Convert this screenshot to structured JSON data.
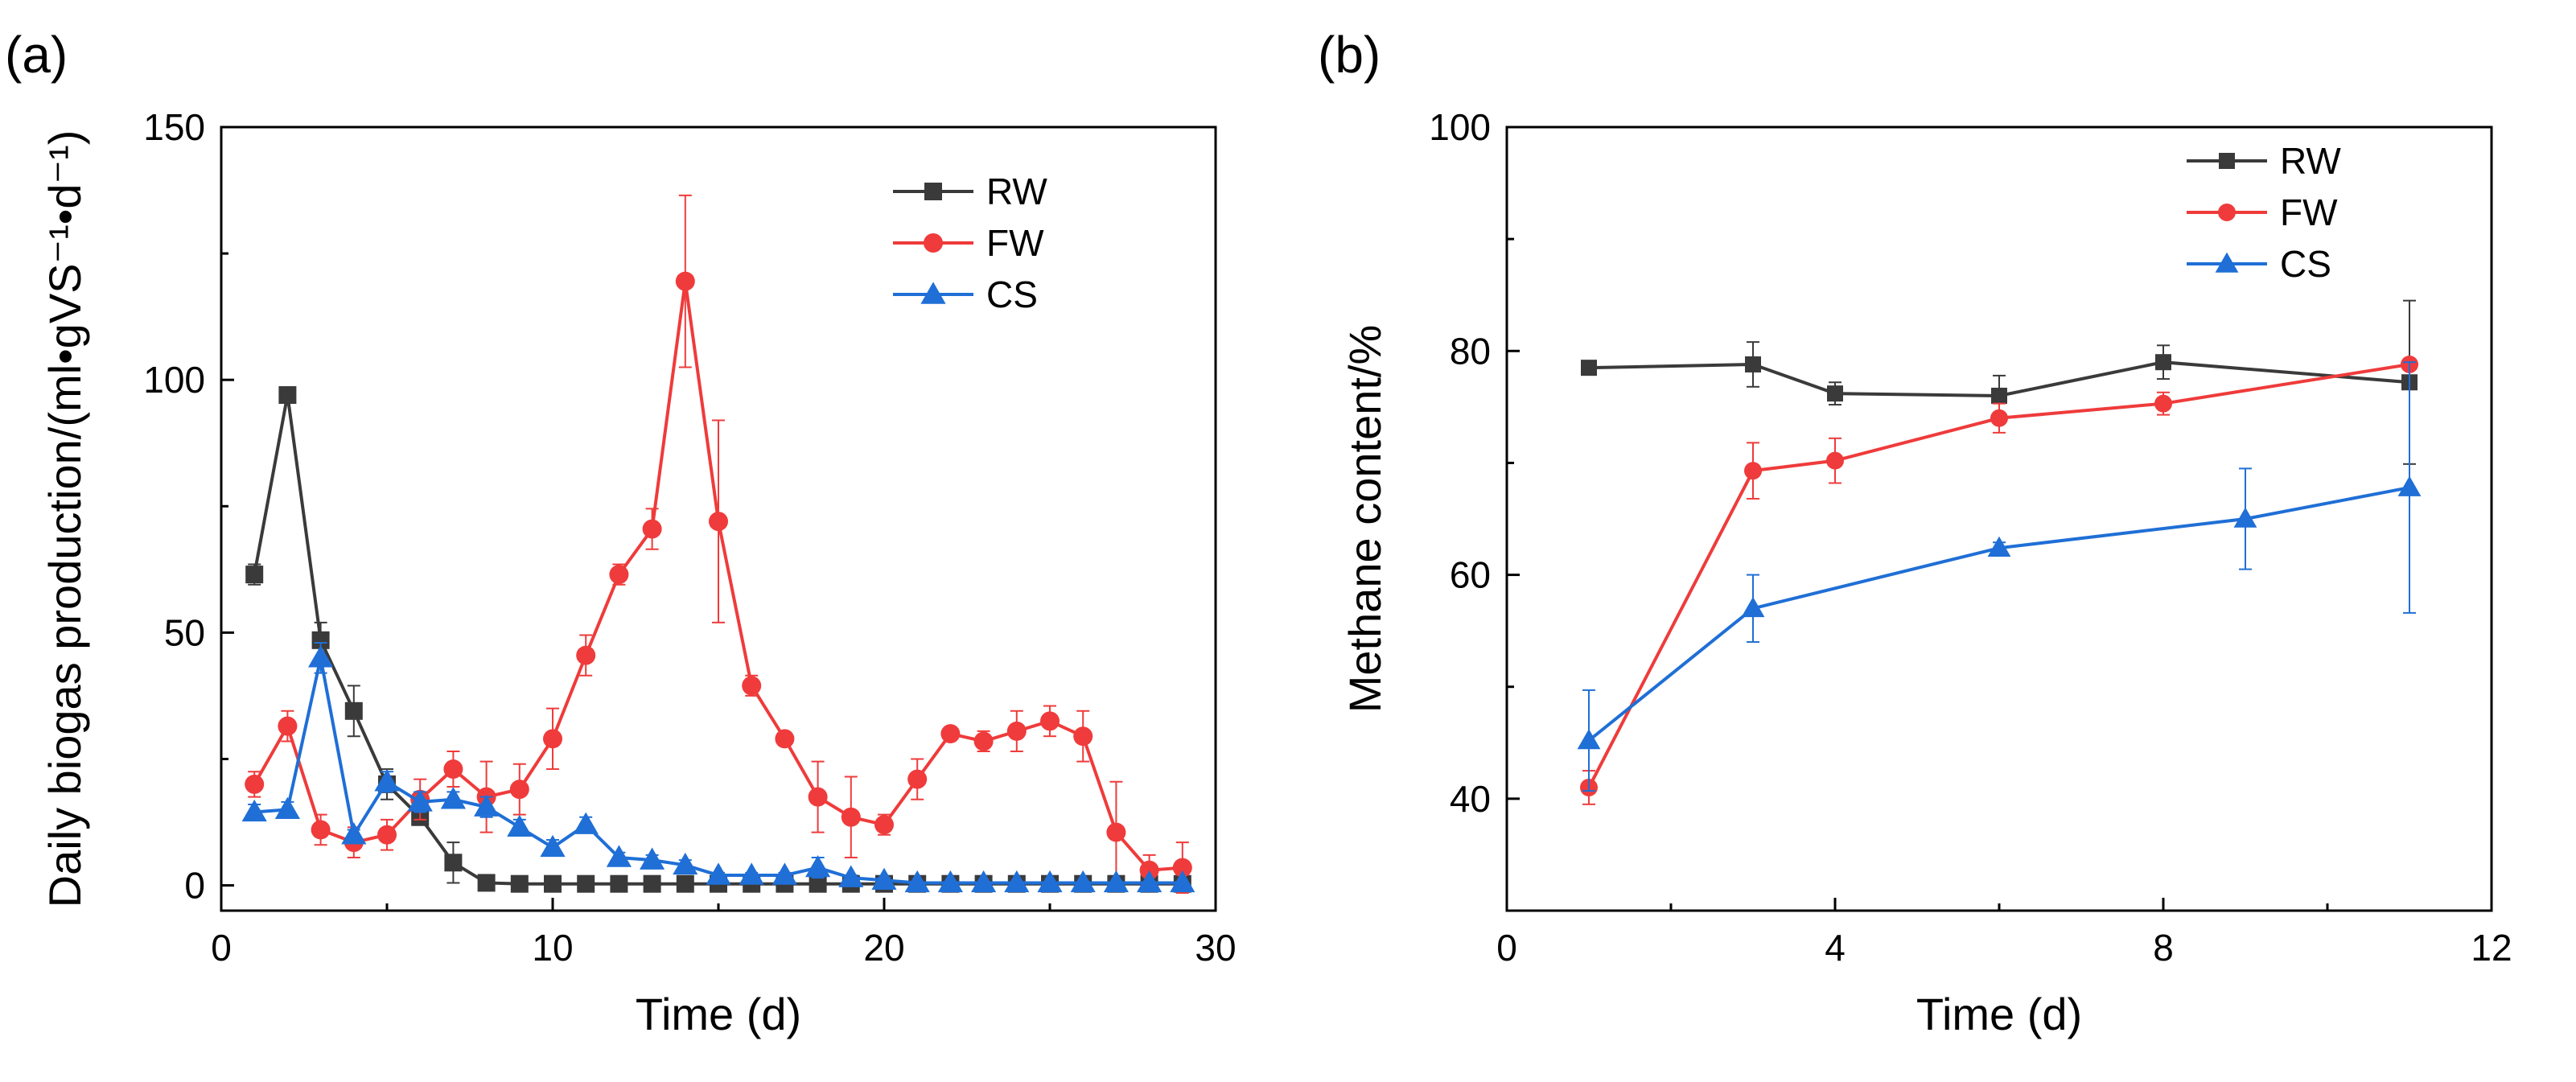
{
  "panel_a_label": "(a)",
  "panel_b_label": "(b)",
  "colors": {
    "RW": "#3a3a3a",
    "FW": "#ef3b3b",
    "CS": "#1f6fd6"
  },
  "chart_data": [
    {
      "type": "line",
      "panel": "(a)",
      "xlabel": "Time (d)",
      "ylabel": "Daily biogas production/(ml•gVS⁻¹•d⁻¹)",
      "xlim": [
        0,
        30
      ],
      "ylim": [
        -5,
        150
      ],
      "xticks": [
        0,
        10,
        20,
        30
      ],
      "yticks": [
        0,
        50,
        100,
        150
      ],
      "grid": false,
      "legend_position": "top-right",
      "series": [
        {
          "name": "RW",
          "marker": "square",
          "x": [
            1,
            2,
            3,
            4,
            5,
            6,
            7,
            8,
            9,
            10,
            11,
            12,
            13,
            14,
            15,
            16,
            17,
            18,
            19,
            20,
            21,
            22,
            23,
            24,
            25,
            26,
            27,
            28,
            29
          ],
          "y": [
            61.5,
            97,
            48.5,
            34.5,
            20,
            13.5,
            4.5,
            0.5,
            0.3,
            0.3,
            0.3,
            0.3,
            0.3,
            0.3,
            0.3,
            0.3,
            0.3,
            0.3,
            0.3,
            0.3,
            0.3,
            0.3,
            0.3,
            0.3,
            0.3,
            0.3,
            0.3,
            0.3,
            0.3
          ],
          "err": [
            2,
            0,
            3.5,
            5,
            3,
            1.5,
            4,
            0,
            0,
            0,
            0,
            0,
            0,
            0,
            0,
            0,
            0,
            0,
            0,
            0,
            0,
            0,
            0,
            0,
            0,
            0,
            0,
            0,
            0
          ]
        },
        {
          "name": "FW",
          "marker": "circle",
          "x": [
            1,
            2,
            3,
            4,
            5,
            6,
            7,
            8,
            9,
            10,
            11,
            12,
            13,
            14,
            15,
            16,
            17,
            18,
            19,
            20,
            21,
            22,
            23,
            24,
            25,
            26,
            27,
            28,
            29
          ],
          "y": [
            20,
            31.5,
            11,
            8.5,
            10,
            17,
            23,
            17.5,
            19,
            29,
            45.5,
            61.5,
            70.5,
            119.5,
            72,
            39.5,
            29,
            17.5,
            13.5,
            12,
            21,
            30,
            28.5,
            30.5,
            32.5,
            29.5,
            10.5,
            3,
            3.5
          ],
          "err": [
            2.5,
            3,
            3,
            3,
            3,
            4,
            3.5,
            7,
            5,
            6,
            4,
            2,
            4,
            17,
            20,
            2,
            0,
            7,
            8,
            2,
            4,
            0,
            2,
            4,
            3,
            5,
            10,
            3,
            5
          ]
        },
        {
          "name": "CS",
          "marker": "triangle",
          "x": [
            1,
            2,
            3,
            4,
            5,
            6,
            7,
            8,
            9,
            10,
            11,
            12,
            13,
            14,
            15,
            16,
            17,
            18,
            19,
            20,
            21,
            22,
            23,
            24,
            25,
            26,
            27,
            28,
            29
          ],
          "y": [
            14.5,
            15,
            45,
            10,
            20.5,
            16.5,
            17,
            15.5,
            11.5,
            7.5,
            12,
            5.5,
            5,
            4,
            2,
            2,
            2,
            3.5,
            1.5,
            1,
            0.5,
            0.5,
            0.5,
            0.5,
            0.5,
            0.5,
            0.5,
            0.5,
            0.5
          ],
          "err": [
            1.5,
            1.5,
            3,
            1,
            2,
            2,
            1.5,
            2,
            1.5,
            1.5,
            1.5,
            1,
            1,
            1,
            0.5,
            0.5,
            0.5,
            2,
            0.5,
            0.5,
            0,
            0,
            0,
            0,
            0,
            0,
            0,
            0,
            0
          ]
        }
      ]
    },
    {
      "type": "line",
      "panel": "(b)",
      "xlabel": "Time (d)",
      "ylabel": "Methane content/%",
      "xlim": [
        0,
        12
      ],
      "ylim": [
        30,
        100
      ],
      "xticks": [
        0,
        4,
        8,
        12
      ],
      "yticks": [
        40,
        60,
        80,
        100
      ],
      "grid": false,
      "legend_position": "top-right",
      "series": [
        {
          "name": "RW",
          "marker": "square",
          "x": [
            1,
            3,
            4,
            6,
            8,
            11
          ],
          "y": [
            78.5,
            78.8,
            76.2,
            76,
            79,
            77.2
          ],
          "err": [
            0.5,
            2,
            1,
            1.8,
            1.5,
            7.3
          ]
        },
        {
          "name": "FW",
          "marker": "circle",
          "x": [
            1,
            3,
            4,
            6,
            8,
            11
          ],
          "y": [
            41,
            69.3,
            70.2,
            74,
            75.3,
            78.8
          ],
          "err": [
            1.5,
            2.5,
            2,
            1.3,
            1,
            0.3
          ]
        },
        {
          "name": "CS",
          "marker": "triangle",
          "x": [
            1,
            3,
            6,
            9,
            11
          ],
          "y": [
            45.2,
            57,
            62.4,
            65,
            67.8
          ],
          "err": [
            4.5,
            3,
            0.5,
            4.5,
            11.2
          ]
        }
      ]
    }
  ]
}
